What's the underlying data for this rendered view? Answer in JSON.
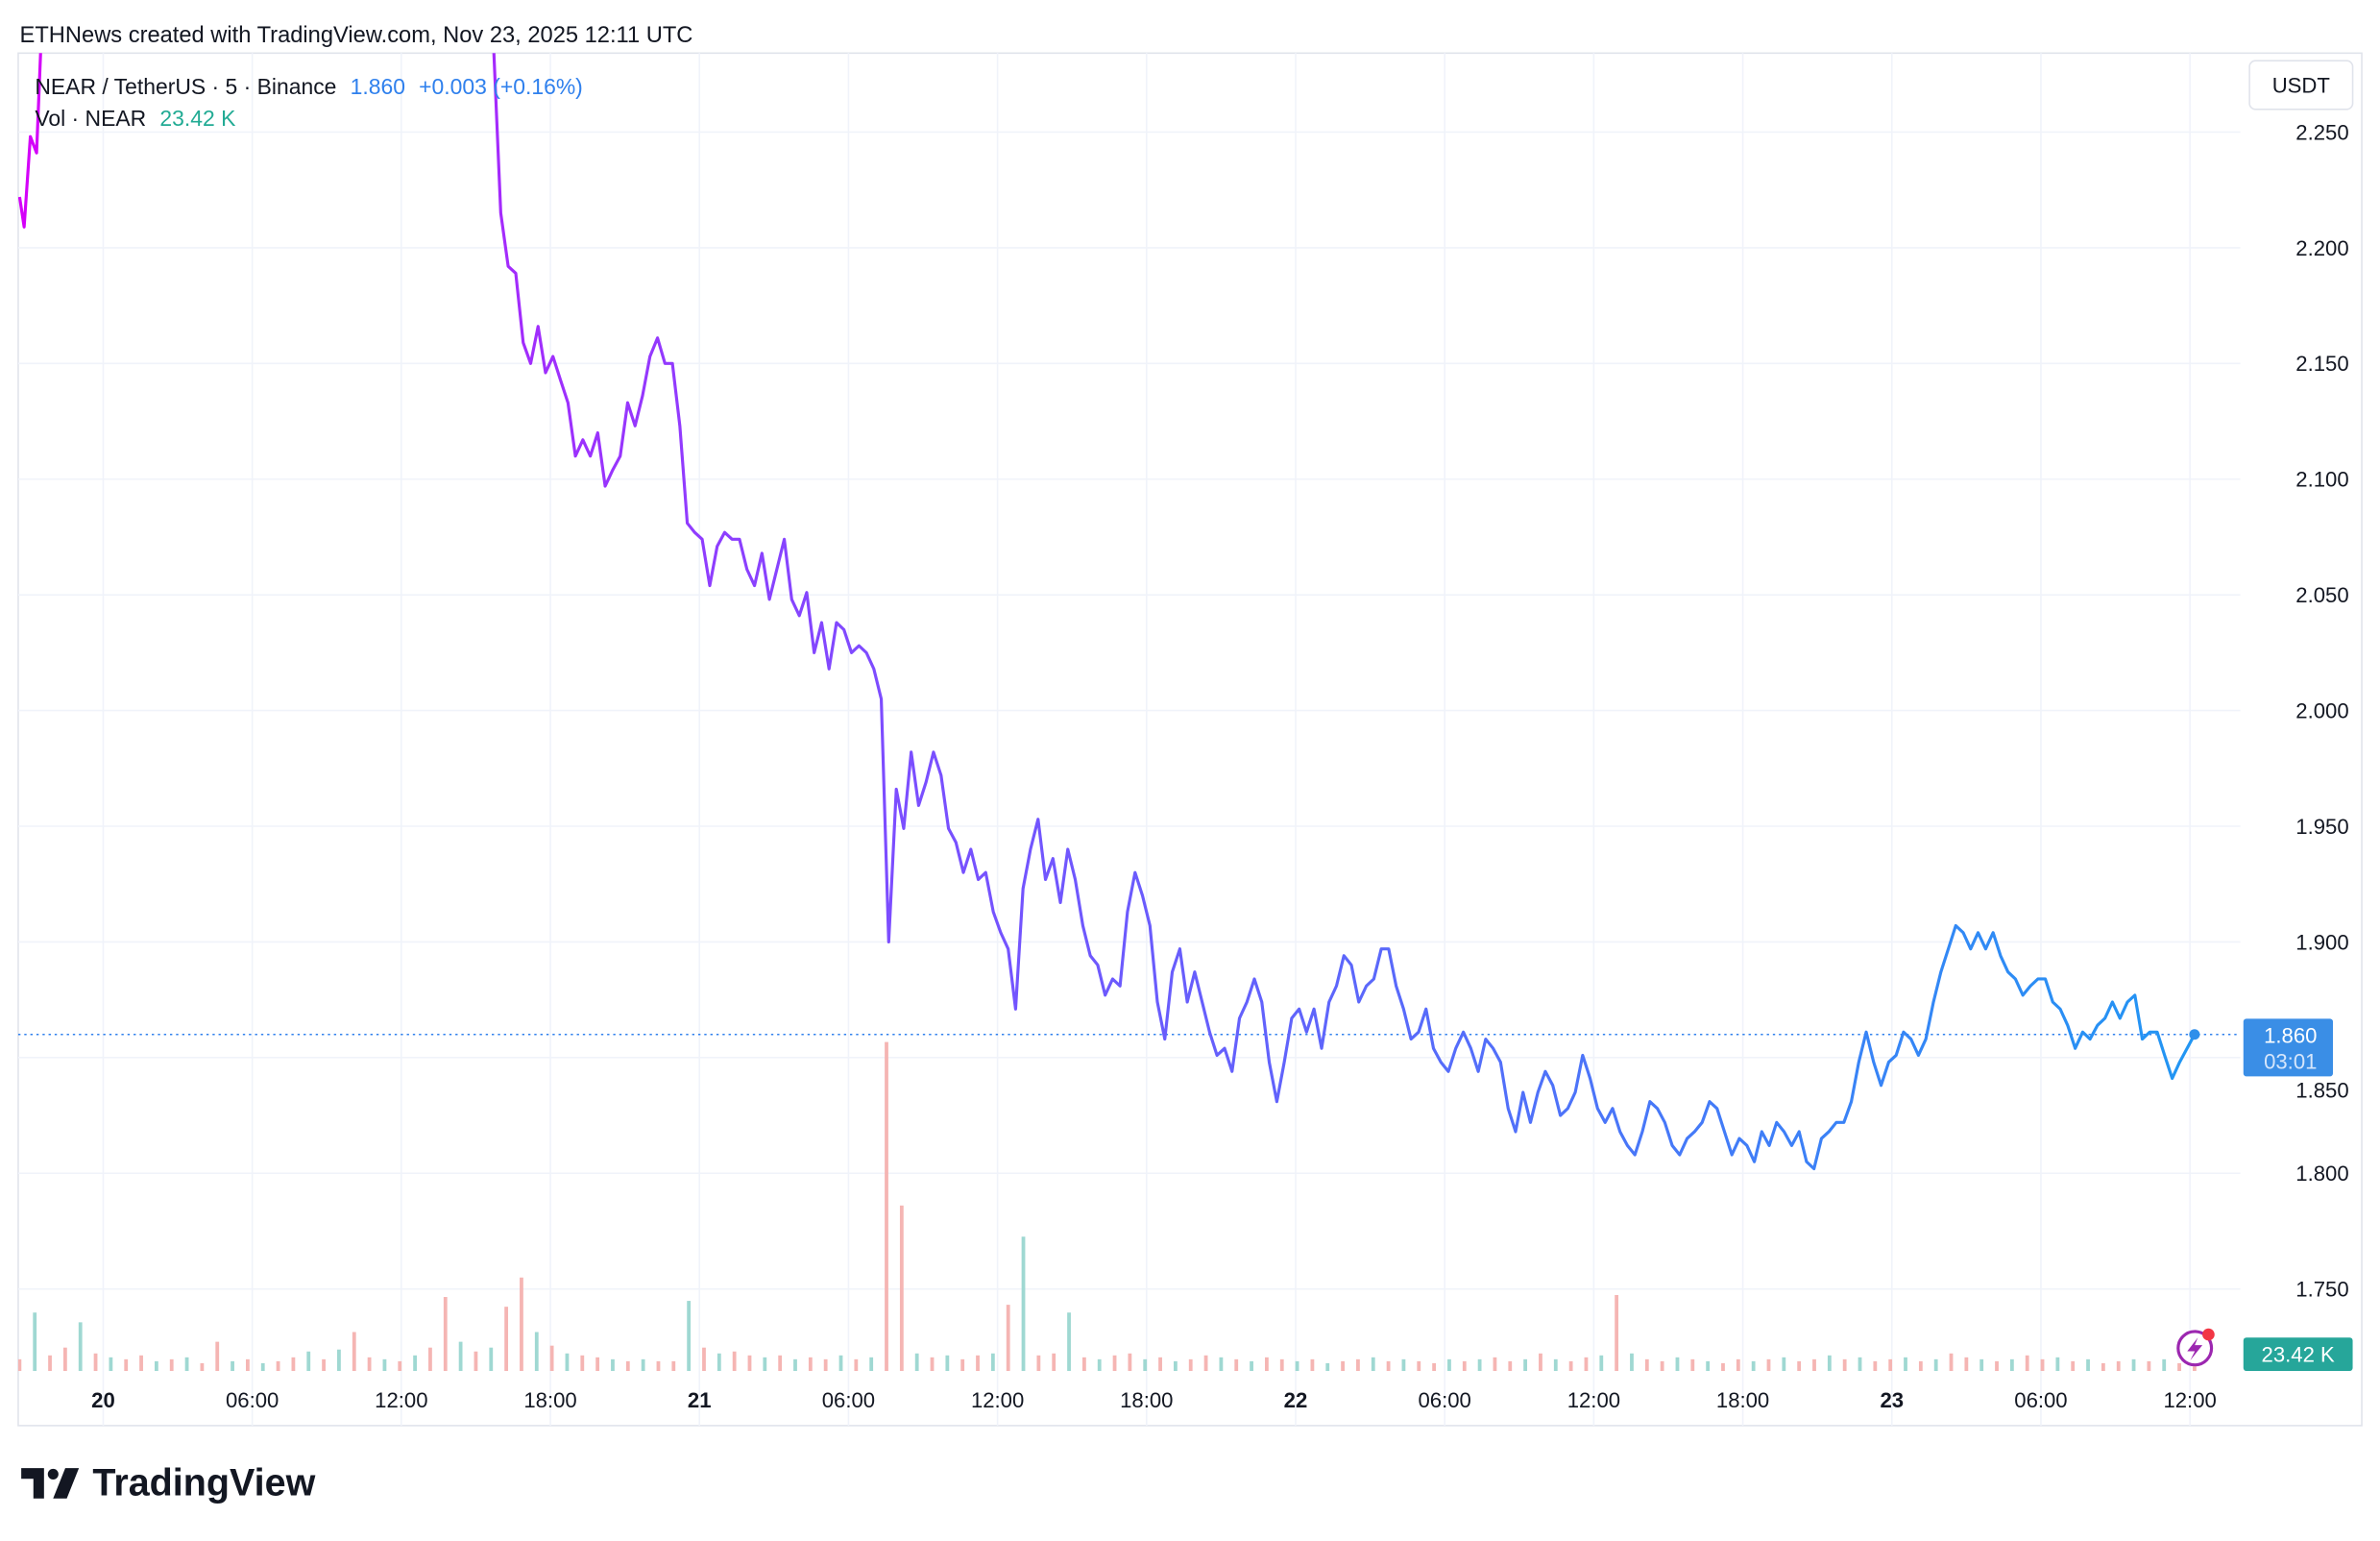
{
  "header": {
    "caption": "ETHNews created with TradingView.com, Nov 23, 2025 12:11 UTC"
  },
  "legend": {
    "symbol": "NEAR / TetherUS · 5 · Binance",
    "last_price": "1.860",
    "change": "+0.003 (+0.16%)",
    "volume_label": "Vol · NEAR",
    "volume_value": "23.42 K"
  },
  "price_axis": {
    "currency": "USDT"
  },
  "last_price_tag": {
    "price": "1.860",
    "countdown": "03:01"
  },
  "volume_tag": {
    "value": "23.42 K"
  },
  "branding": {
    "logo_text": "TradingView"
  },
  "colors": {
    "line_start": "#d500f9",
    "line_mid": "#7c4dff",
    "line_end": "#2196f3",
    "price_tag": "#3a8ee6",
    "volume_up": "#26a69a",
    "volume_down": "#ef5350",
    "change_text": "#2f80ed"
  },
  "icons": {
    "alert": "lightning-circle-icon",
    "logo": "tradingview-logo-icon"
  },
  "chart_data": {
    "type": "line",
    "title": "",
    "xlabel": "",
    "ylabel": "",
    "ylim": [
      1.715,
      2.284
    ],
    "grid": true,
    "y_ticks": [
      "2.250",
      "2.200",
      "2.150",
      "2.100",
      "2.050",
      "2.000",
      "1.950",
      "1.900",
      "1.850",
      "1.800",
      "1.750"
    ],
    "x_ticks": [
      "20",
      "06:00",
      "12:00",
      "18:00",
      "21",
      "06:00",
      "12:00",
      "18:00",
      "22",
      "06:00",
      "12:00",
      "18:00",
      "23",
      "06:00",
      "12:00"
    ],
    "x_ticks_bold": [
      "20",
      "21",
      "22",
      "23"
    ],
    "early_points": [
      [
        "2025-11-19 20:38",
        2.222
      ],
      [
        "2025-11-19 20:49",
        2.209
      ],
      [
        "2025-11-19 21:04",
        2.248
      ],
      [
        "2025-11-19 21:19",
        2.241
      ],
      [
        "2025-11-19 21:30",
        2.29
      ],
      [
        "2025-11-20 15:09",
        2.29
      ],
      [
        "2025-11-20 15:24",
        2.295
      ],
      [
        "2025-11-20 15:42",
        2.29
      ]
    ],
    "series": {
      "start": "2025-11-20 16:00",
      "end": "2025-11-23 12:10",
      "values": [
        2.215,
        2.192,
        2.189,
        2.159,
        2.15,
        2.166,
        2.146,
        2.153,
        2.143,
        2.133,
        2.11,
        2.117,
        2.11,
        2.12,
        2.097,
        2.104,
        2.11,
        2.133,
        2.123,
        2.136,
        2.153,
        2.161,
        2.15,
        2.15,
        2.123,
        2.081,
        2.077,
        2.074,
        2.054,
        2.071,
        2.077,
        2.074,
        2.074,
        2.061,
        2.054,
        2.068,
        2.048,
        2.061,
        2.074,
        2.048,
        2.041,
        2.051,
        2.025,
        2.038,
        2.018,
        2.038,
        2.035,
        2.025,
        2.028,
        2.025,
        2.018,
        2.005,
        1.9,
        1.966,
        1.949,
        1.982,
        1.959,
        1.969,
        1.982,
        1.972,
        1.949,
        1.943,
        1.93,
        1.94,
        1.927,
        1.93,
        1.913,
        1.904,
        1.897,
        1.871,
        1.923,
        1.94,
        1.953,
        1.927,
        1.936,
        1.917,
        1.94,
        1.927,
        1.907,
        1.894,
        1.89,
        1.877,
        1.884,
        1.881,
        1.913,
        1.93,
        1.92,
        1.907,
        1.874,
        1.858,
        1.887,
        1.897,
        1.874,
        1.887,
        1.874,
        1.861,
        1.851,
        1.854,
        1.844,
        1.867,
        1.874,
        1.884,
        1.874,
        1.848,
        1.831,
        1.848,
        1.867,
        1.871,
        1.861,
        1.871,
        1.854,
        1.874,
        1.881,
        1.894,
        1.89,
        1.874,
        1.881,
        1.884,
        1.897,
        1.897,
        1.881,
        1.871,
        1.858,
        1.861,
        1.871,
        1.854,
        1.848,
        1.844,
        1.854,
        1.861,
        1.854,
        1.844,
        1.858,
        1.854,
        1.848,
        1.828,
        1.818,
        1.835,
        1.822,
        1.835,
        1.844,
        1.838,
        1.825,
        1.828,
        1.835,
        1.851,
        1.841,
        1.828,
        1.822,
        1.828,
        1.818,
        1.812,
        1.808,
        1.818,
        1.831,
        1.828,
        1.822,
        1.812,
        1.808,
        1.815,
        1.818,
        1.822,
        1.831,
        1.828,
        1.818,
        1.808,
        1.815,
        1.812,
        1.805,
        1.818,
        1.812,
        1.822,
        1.818,
        1.812,
        1.818,
        1.805,
        1.802,
        1.815,
        1.818,
        1.822,
        1.822,
        1.831,
        1.848,
        1.861,
        1.848,
        1.838,
        1.848,
        1.851,
        1.861,
        1.858,
        1.851,
        1.858,
        1.874,
        1.887,
        1.897,
        1.907,
        1.904,
        1.897,
        1.904,
        1.897,
        1.904,
        1.894,
        1.887,
        1.884,
        1.877,
        1.881,
        1.884,
        1.884,
        1.874,
        1.871,
        1.864,
        1.854,
        1.861,
        1.858,
        1.864,
        1.867,
        1.874,
        1.867,
        1.874,
        1.877,
        1.858,
        1.861,
        1.861,
        1.851,
        1.841,
        1.848,
        1.854,
        1.86
      ]
    },
    "volume": {
      "unit": "K",
      "start": "2025-11-19 20:38",
      "end": "2025-11-23 12:10",
      "values": [
        60,
        300,
        80,
        120,
        250,
        90,
        70,
        60,
        80,
        50,
        60,
        70,
        40,
        150,
        50,
        60,
        40,
        50,
        70,
        100,
        60,
        110,
        200,
        70,
        60,
        50,
        80,
        120,
        380,
        150,
        100,
        120,
        330,
        480,
        200,
        130,
        90,
        80,
        70,
        60,
        50,
        60,
        50,
        50,
        360,
        120,
        90,
        100,
        80,
        70,
        80,
        60,
        70,
        60,
        80,
        60,
        70,
        1690,
        850,
        90,
        70,
        80,
        60,
        80,
        90,
        340,
        690,
        80,
        90,
        300,
        70,
        60,
        80,
        90,
        60,
        70,
        50,
        60,
        80,
        70,
        60,
        50,
        70,
        60,
        50,
        60,
        40,
        50,
        60,
        70,
        50,
        60,
        50,
        40,
        60,
        50,
        60,
        70,
        50,
        60,
        90,
        60,
        50,
        70,
        80,
        390,
        90,
        60,
        50,
        70,
        60,
        50,
        40,
        60,
        50,
        60,
        70,
        50,
        60,
        80,
        60,
        70,
        50,
        60,
        70,
        50,
        60,
        90,
        70,
        60,
        50,
        60,
        80,
        60,
        70,
        50,
        60,
        40,
        50,
        60,
        50,
        60,
        40,
        23.42
      ]
    }
  }
}
